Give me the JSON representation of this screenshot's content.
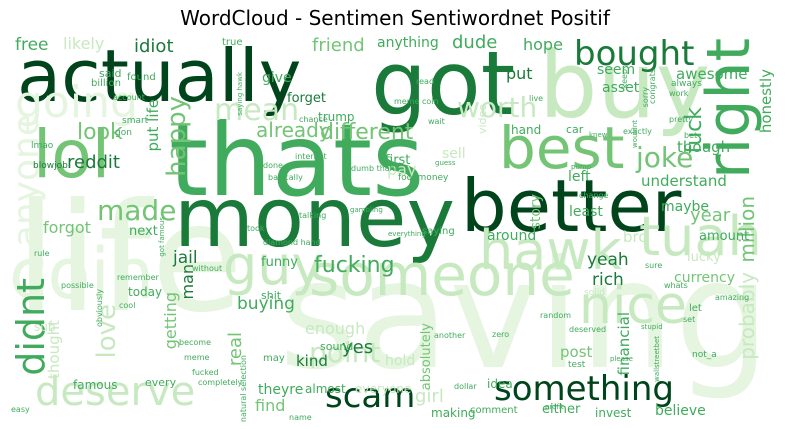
{
  "title": "WordCloud - Sentimen Sentiwordnet Positif",
  "colors": {
    "darkest": "#00441b",
    "dark": "#1a7a3a",
    "mid": "#41ab5d",
    "light": "#74c476",
    "pale": "#c7e9c0",
    "faint": "#e5f5e0"
  },
  "words": [
    {
      "text": "life",
      "color": "#e5f5e0"
    },
    {
      "text": "saving",
      "color": "#e5f5e0"
    },
    {
      "text": "money",
      "color": "#1a7a3a"
    },
    {
      "text": "thats",
      "color": "#41ab5d"
    },
    {
      "text": "better",
      "color": "#00441b"
    },
    {
      "text": "actually",
      "color": "#00441b"
    },
    {
      "text": "got",
      "color": "#1a7a3a"
    },
    {
      "text": "buy",
      "color": "#c7e9c0"
    },
    {
      "text": "lol",
      "color": "#74c476"
    },
    {
      "text": "best",
      "color": "#74c476"
    },
    {
      "text": "right",
      "color": "#41ab5d"
    },
    {
      "text": "someone",
      "color": "#c7e9c0"
    },
    {
      "text": "coin",
      "color": "#e5f5e0"
    },
    {
      "text": "hawk",
      "color": "#c7e9c0"
    },
    {
      "text": "tuah",
      "color": "#c7e9c0"
    },
    {
      "text": "bought",
      "color": "#1a7a3a"
    },
    {
      "text": "something",
      "color": "#00441b"
    },
    {
      "text": "scam",
      "color": "#00441b"
    },
    {
      "text": "nice",
      "color": "#c7e9c0"
    },
    {
      "text": "guy",
      "color": "#c7e9c0"
    },
    {
      "text": "deserve",
      "color": "#c7e9c0"
    },
    {
      "text": "didnt",
      "color": "#41ab5d"
    },
    {
      "text": "going",
      "color": "#e5f5e0"
    },
    {
      "text": "anyone",
      "color": "#e5f5e0"
    },
    {
      "text": "happy",
      "color": "#74c476"
    },
    {
      "text": "joke",
      "color": "#74c476"
    },
    {
      "text": "mean",
      "color": "#c7e9c0"
    },
    {
      "text": "made",
      "color": "#74c476"
    },
    {
      "text": "worth",
      "color": "#c7e9c0"
    },
    {
      "text": "different",
      "color": "#74c476"
    },
    {
      "text": "fuck",
      "color": "#41ab5d"
    },
    {
      "text": "look",
      "color": "#74c476"
    },
    {
      "text": "already",
      "color": "#74c476"
    },
    {
      "text": "love",
      "color": "#c7e9c0"
    },
    {
      "text": "fucking",
      "color": "#41ab5d"
    },
    {
      "text": "point",
      "color": "#c7e9c0"
    },
    {
      "text": "probably",
      "color": "#c7e9c0"
    },
    {
      "text": "million",
      "color": "#74c476"
    },
    {
      "text": "honestly",
      "color": "#41ab5d"
    },
    {
      "text": "idiot",
      "color": "#1a7a3a"
    },
    {
      "text": "free",
      "color": "#41ab5d"
    },
    {
      "text": "likely",
      "color": "#c7e9c0"
    },
    {
      "text": "friend",
      "color": "#74c476"
    },
    {
      "text": "anything",
      "color": "#41ab5d"
    },
    {
      "text": "dude",
      "color": "#41ab5d"
    },
    {
      "text": "hope",
      "color": "#41ab5d"
    },
    {
      "text": "seem",
      "color": "#41ab5d"
    },
    {
      "text": "put",
      "color": "#1a7a3a"
    },
    {
      "text": "asset",
      "color": "#41ab5d"
    },
    {
      "text": "awesome",
      "color": "#41ab5d"
    },
    {
      "text": "forget",
      "color": "#1a7a3a"
    },
    {
      "text": "give",
      "color": "#41ab5d"
    },
    {
      "text": "trump",
      "color": "#41ab5d"
    },
    {
      "text": "put life",
      "color": "#41ab5d"
    },
    {
      "text": "reddit",
      "color": "#1a7a3a"
    },
    {
      "text": "first",
      "color": "#41ab5d"
    },
    {
      "text": "pay",
      "color": "#c7e9c0"
    },
    {
      "text": "sell",
      "color": "#c7e9c0"
    },
    {
      "text": "left",
      "color": "#41ab5d"
    },
    {
      "text": "though",
      "color": "#41ab5d"
    },
    {
      "text": "understand",
      "color": "#41ab5d"
    },
    {
      "text": "maybe",
      "color": "#41ab5d"
    },
    {
      "text": "year",
      "color": "#74c476"
    },
    {
      "text": "forgot",
      "color": "#74c476"
    },
    {
      "text": "next",
      "color": "#41ab5d"
    },
    {
      "text": "jail",
      "color": "#1a7a3a"
    },
    {
      "text": "man",
      "color": "#1a7a3a"
    },
    {
      "text": "yeah",
      "color": "#1a7a3a"
    },
    {
      "text": "rich",
      "color": "#1a7a3a"
    },
    {
      "text": "around",
      "color": "#41ab5d"
    },
    {
      "text": "amount",
      "color": "#41ab5d"
    },
    {
      "text": "least",
      "color": "#41ab5d"
    },
    {
      "text": "story",
      "color": "#74c476"
    },
    {
      "text": "bro",
      "color": "#c7e9c0"
    },
    {
      "text": "lucky",
      "color": "#c7e9c0"
    },
    {
      "text": "currency",
      "color": "#74c476"
    },
    {
      "text": "financial",
      "color": "#41ab5d"
    },
    {
      "text": "buying",
      "color": "#41ab5d"
    },
    {
      "text": "getting",
      "color": "#74c476"
    },
    {
      "text": "enough",
      "color": "#c7e9c0"
    },
    {
      "text": "kind",
      "color": "#1a7a3a"
    },
    {
      "text": "yes",
      "color": "#1a7a3a"
    },
    {
      "text": "post",
      "color": "#74c476"
    },
    {
      "text": "real",
      "color": "#74c476"
    },
    {
      "text": "theyre",
      "color": "#41ab5d"
    },
    {
      "text": "almost",
      "color": "#41ab5d"
    },
    {
      "text": "find",
      "color": "#74c476"
    },
    {
      "text": "girl",
      "color": "#c7e9c0"
    },
    {
      "text": "making",
      "color": "#41ab5d"
    },
    {
      "text": "comment",
      "color": "#41ab5d"
    },
    {
      "text": "either",
      "color": "#41ab5d"
    },
    {
      "text": "invest",
      "color": "#41ab5d"
    },
    {
      "text": "believe",
      "color": "#41ab5d"
    },
    {
      "text": "idea",
      "color": "#41ab5d"
    },
    {
      "text": "absolutely",
      "color": "#74c476"
    },
    {
      "text": "hold",
      "color": "#c7e9c0"
    },
    {
      "text": "thought",
      "color": "#c7e9c0"
    },
    {
      "text": "today",
      "color": "#41ab5d"
    },
    {
      "text": "funny",
      "color": "#41ab5d"
    },
    {
      "text": "shit",
      "color": "#41ab5d"
    },
    {
      "text": "famous",
      "color": "#41ab5d"
    },
    {
      "text": "every",
      "color": "#41ab5d"
    },
    {
      "text": "sound",
      "color": "#41ab5d"
    },
    {
      "text": "may",
      "color": "#41ab5d"
    },
    {
      "text": "hand",
      "color": "#41ab5d"
    },
    {
      "text": "car",
      "color": "#41ab5d"
    },
    {
      "text": "video",
      "color": "#c7e9c0"
    },
    {
      "text": "said",
      "color": "#41ab5d"
    },
    {
      "text": "billion",
      "color": "#41ab5d"
    },
    {
      "text": "found",
      "color": "#41ab5d"
    },
    {
      "text": "smart",
      "color": "#41ab5d"
    },
    {
      "text": "lmao",
      "color": "#41ab5d"
    },
    {
      "text": "blowjob",
      "color": "#1a7a3a"
    },
    {
      "text": "gon",
      "color": "#41ab5d"
    },
    {
      "text": "account",
      "color": "#41ab5d"
    },
    {
      "text": "meme coin",
      "color": "#41ab5d"
    },
    {
      "text": "read",
      "color": "#41ab5d"
    },
    {
      "text": "chance",
      "color": "#41ab5d"
    },
    {
      "text": "wait",
      "color": "#41ab5d"
    },
    {
      "text": "live",
      "color": "#41ab5d"
    },
    {
      "text": "fool money",
      "color": "#41ab5d"
    },
    {
      "text": "dumb thank",
      "color": "#41ab5d"
    },
    {
      "text": "basically",
      "color": "#41ab5d"
    },
    {
      "text": "done",
      "color": "#41ab5d"
    },
    {
      "text": "internet",
      "color": "#41ab5d"
    },
    {
      "text": "talking",
      "color": "#41ab5d"
    },
    {
      "text": "took",
      "color": "#41ab5d"
    },
    {
      "text": "without",
      "color": "#41ab5d"
    },
    {
      "text": "diamond hand",
      "color": "#41ab5d"
    },
    {
      "text": "remember",
      "color": "#41ab5d"
    },
    {
      "text": "possible",
      "color": "#41ab5d"
    },
    {
      "text": "obviously",
      "color": "#41ab5d"
    },
    {
      "text": "cool",
      "color": "#41ab5d"
    },
    {
      "text": "become",
      "color": "#41ab5d"
    },
    {
      "text": "meme",
      "color": "#41ab5d"
    },
    {
      "text": "fucked",
      "color": "#41ab5d"
    },
    {
      "text": "completely",
      "color": "#41ab5d"
    },
    {
      "text": "natural selection",
      "color": "#41ab5d"
    },
    {
      "text": "name",
      "color": "#41ab5d"
    },
    {
      "text": "everyone",
      "color": "#c7e9c0"
    },
    {
      "text": "another",
      "color": "#41ab5d"
    },
    {
      "text": "zero",
      "color": "#41ab5d"
    },
    {
      "text": "dollar",
      "color": "#41ab5d"
    },
    {
      "text": "test",
      "color": "#41ab5d"
    },
    {
      "text": "solid",
      "color": "#c7e9c0"
    },
    {
      "text": "random",
      "color": "#41ab5d"
    },
    {
      "text": "deserved",
      "color": "#41ab5d"
    },
    {
      "text": "whats",
      "color": "#41ab5d"
    },
    {
      "text": "sure",
      "color": "#41ab5d"
    },
    {
      "text": "amazing",
      "color": "#41ab5d"
    },
    {
      "text": "let",
      "color": "#41ab5d"
    },
    {
      "text": "set",
      "color": "#41ab5d"
    },
    {
      "text": "not_a",
      "color": "#41ab5d"
    },
    {
      "text": "easy",
      "color": "#41ab5d"
    },
    {
      "text": "sub",
      "color": "#c7e9c0"
    },
    {
      "text": "rule",
      "color": "#41ab5d"
    },
    {
      "text": "true",
      "color": "#41ab5d"
    },
    {
      "text": "always",
      "color": "#41ab5d"
    },
    {
      "text": "work",
      "color": "#41ab5d"
    },
    {
      "text": "keep",
      "color": "#41ab5d"
    },
    {
      "text": "exactly",
      "color": "#41ab5d"
    },
    {
      "text": "pretty",
      "color": "#41ab5d"
    },
    {
      "text": "bet",
      "color": "#41ab5d"
    },
    {
      "text": "change",
      "color": "#41ab5d"
    },
    {
      "text": "knew",
      "color": "#41ab5d"
    },
    {
      "text": "saying",
      "color": "#41ab5d"
    },
    {
      "text": "saying hawk",
      "color": "#41ab5d"
    },
    {
      "text": "got famous",
      "color": "#41ab5d"
    },
    {
      "text": "congrats",
      "color": "#41ab5d"
    },
    {
      "text": "sorry",
      "color": "#41ab5d"
    },
    {
      "text": "gambling",
      "color": "#41ab5d"
    },
    {
      "text": "guess",
      "color": "#41ab5d"
    },
    {
      "text": "everything",
      "color": "#41ab5d"
    },
    {
      "text": "please",
      "color": "#41ab5d"
    },
    {
      "text": "stupid",
      "color": "#41ab5d"
    },
    {
      "text": "wallstreetbet",
      "color": "#41ab5d"
    },
    {
      "text": "wouldnt",
      "color": "#41ab5d"
    },
    {
      "text": "pump",
      "color": "#41ab5d"
    },
    {
      "text": "profit",
      "color": "#41ab5d"
    }
  ]
}
